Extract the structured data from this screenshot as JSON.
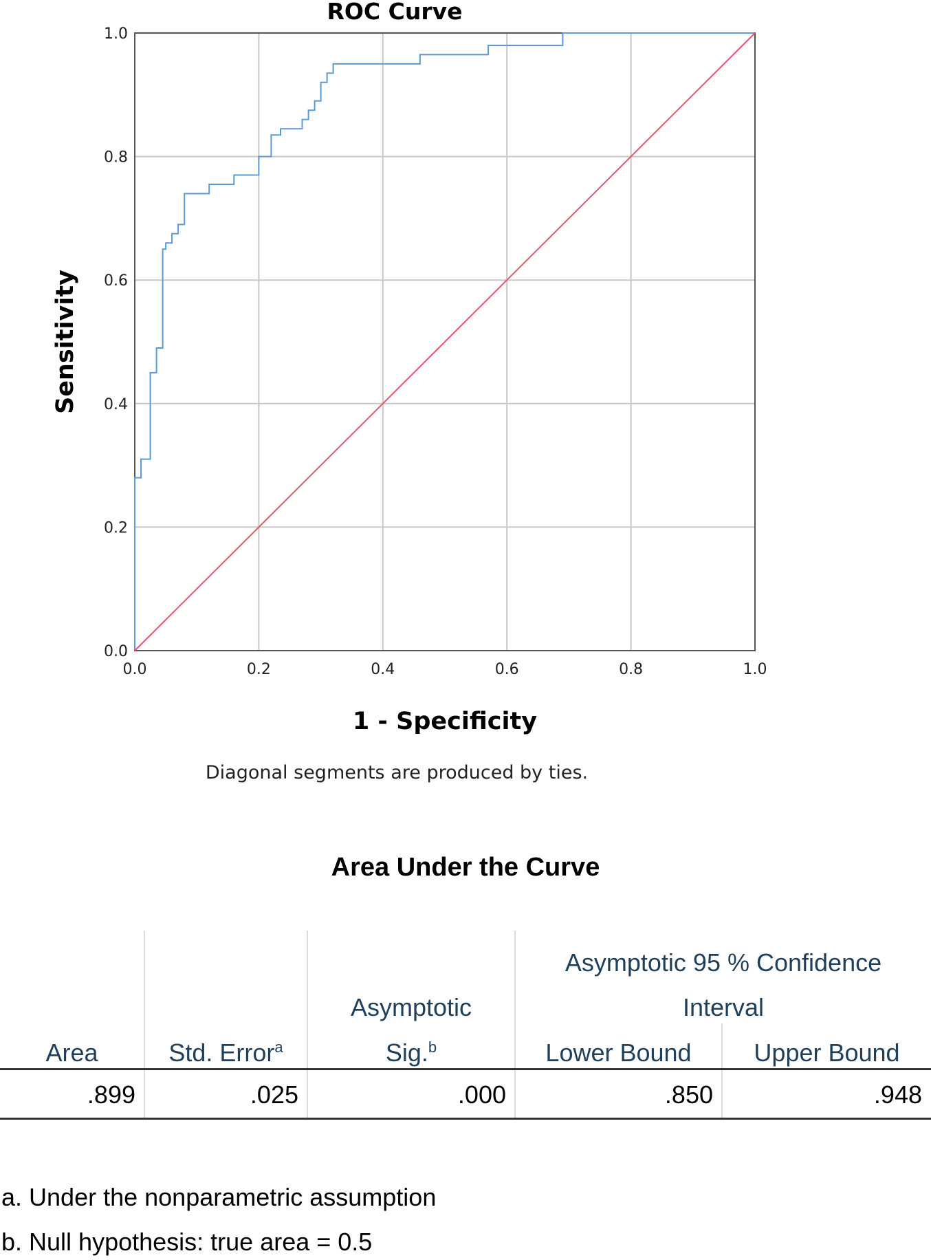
{
  "chart_data": {
    "type": "line",
    "title": "ROC Curve",
    "xlabel": "1 - Specificity",
    "ylabel": "Sensitivity",
    "xlim": [
      0,
      1
    ],
    "ylim": [
      0,
      1
    ],
    "x_ticks": [
      "0.0",
      "0.2",
      "0.4",
      "0.6",
      "0.8",
      "1.0"
    ],
    "y_ticks": [
      "0.0",
      "0.2",
      "0.4",
      "0.6",
      "0.8",
      "1.0"
    ],
    "grid": true,
    "note": "Diagonal segments are produced by ties.",
    "series": [
      {
        "color": "#5b9bd5",
        "x": [
          0,
          0,
          0.01,
          0.01,
          0.025,
          0.025,
          0.035,
          0.035,
          0.045,
          0.045,
          0.05,
          0.05,
          0.06,
          0.06,
          0.07,
          0.07,
          0.08,
          0.08,
          0.09,
          0.09,
          0.1,
          0.1,
          0.12,
          0.12,
          0.16,
          0.16,
          0.2,
          0.2,
          0.22,
          0.22,
          0.235,
          0.235,
          0.27,
          0.27,
          0.28,
          0.28,
          0.29,
          0.29,
          0.3,
          0.3,
          0.31,
          0.31,
          0.32,
          0.32,
          0.33,
          0.33,
          0.46,
          0.46,
          0.57,
          0.57,
          0.69,
          0.69,
          1.0
        ],
        "y": [
          0,
          0.28,
          0.28,
          0.31,
          0.31,
          0.45,
          0.45,
          0.49,
          0.49,
          0.65,
          0.65,
          0.66,
          0.66,
          0.675,
          0.675,
          0.69,
          0.69,
          0.74,
          0.74,
          0.74,
          0.74,
          0.74,
          0.74,
          0.755,
          0.755,
          0.77,
          0.77,
          0.8,
          0.8,
          0.835,
          0.835,
          0.845,
          0.845,
          0.86,
          0.86,
          0.875,
          0.875,
          0.89,
          0.89,
          0.92,
          0.92,
          0.935,
          0.935,
          0.95,
          0.95,
          0.95,
          0.95,
          0.965,
          0.965,
          0.98,
          0.98,
          1.0,
          1.0
        ]
      },
      {
        "color": "#e8546a",
        "x": [
          0,
          1
        ],
        "y": [
          0,
          1
        ]
      }
    ]
  },
  "auc": {
    "title": "Area Under the Curve",
    "headers": {
      "area": "Area",
      "std_error": "Std. Error",
      "std_error_sup": "a",
      "sig_line1": "Asymptotic",
      "sig_line2": "Sig.",
      "sig_sup": "b",
      "ci_line1": "Asymptotic 95 % Confidence",
      "ci_line2": "Interval",
      "lower": "Lower Bound",
      "upper": "Upper Bound"
    },
    "row": {
      "area": ".899",
      "std_error": ".025",
      "sig": ".000",
      "lower": ".850",
      "upper": ".948"
    },
    "footnotes": {
      "a": "a. Under the nonparametric assumption",
      "b": "b. Null hypothesis: true area = 0.5"
    }
  }
}
